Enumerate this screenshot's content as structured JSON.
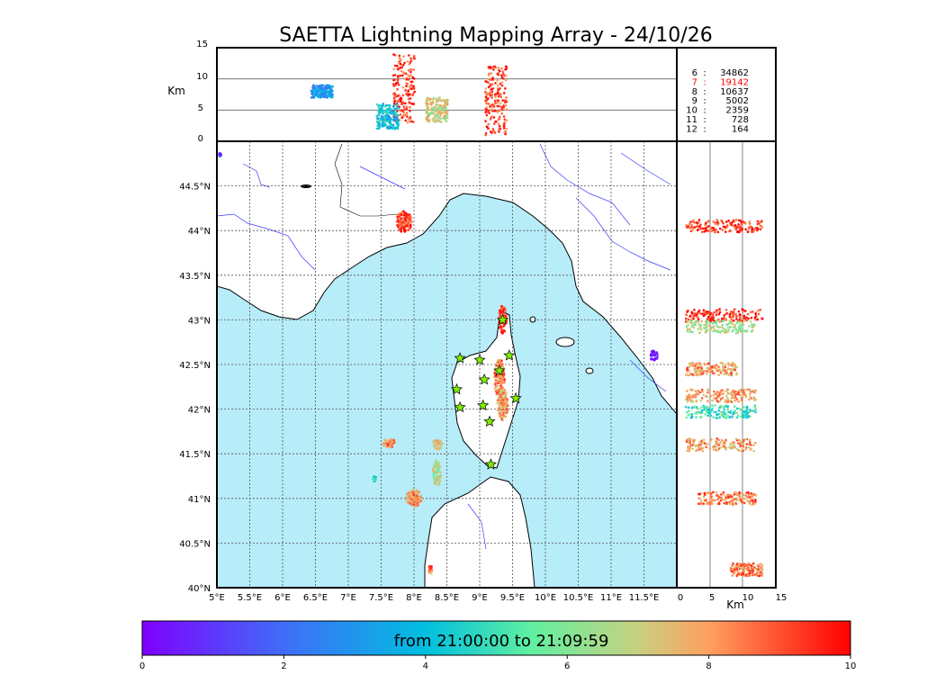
{
  "title": "SAETTA Lightning Mapping Array - 24/10/26",
  "altitude_label": "Km",
  "depth_label": "Km",
  "altitude_ticks": [
    "0",
    "5",
    "10",
    "15"
  ],
  "lat_labels": [
    "40°N",
    "40.5°N",
    "41°N",
    "41.5°N",
    "42°N",
    "42.5°N",
    "43°N",
    "43.5°N",
    "44°N",
    "44.5°N"
  ],
  "lon_labels": [
    "5°E",
    "5.5°E",
    "6°E",
    "6.5°E",
    "7°E",
    "7.5°E",
    "8°E",
    "8.5°E",
    "9°E",
    "9.5°E",
    "10°E",
    "10.5°E",
    "11°E",
    "11.5°E"
  ],
  "side_ticks": [
    "0",
    "5",
    "10",
    "15"
  ],
  "station_counts": [
    {
      "stations": "6",
      "sep": ":",
      "count": "34862",
      "highlight": false
    },
    {
      "stations": "7",
      "sep": ":",
      "count": "19142",
      "highlight": true
    },
    {
      "stations": "8",
      "sep": ":",
      "count": "10637",
      "highlight": false
    },
    {
      "stations": "9",
      "sep": ":",
      "count": "5002",
      "highlight": false
    },
    {
      "stations": "10",
      "sep": ":",
      "count": "2359",
      "highlight": false
    },
    {
      "stations": "11",
      "sep": ":",
      "count": "728",
      "highlight": false
    },
    {
      "stations": "12",
      "sep": ":",
      "count": "164",
      "highlight": false
    }
  ],
  "colorbar": {
    "label": "from 21:00:00 to 21:09:59",
    "ticks": [
      "0",
      "2",
      "4",
      "6",
      "8",
      "10"
    ],
    "min": 0,
    "max": 10
  },
  "colors": {
    "sea": "#b7ecf9",
    "land": "#ffffff",
    "rivers": "#3a3aff",
    "station_marker": "#7ff000",
    "highlight_text": "#ff0000"
  },
  "map_extent": {
    "lon": [
      5,
      12
    ],
    "lat": [
      40,
      45
    ]
  },
  "stations": [
    {
      "lon": 9.35,
      "lat": 43.0
    },
    {
      "lon": 8.7,
      "lat": 42.57
    },
    {
      "lon": 9.0,
      "lat": 42.55
    },
    {
      "lon": 9.45,
      "lat": 42.6
    },
    {
      "lon": 9.3,
      "lat": 42.43
    },
    {
      "lon": 9.07,
      "lat": 42.33
    },
    {
      "lon": 8.65,
      "lat": 42.22
    },
    {
      "lon": 9.55,
      "lat": 42.12
    },
    {
      "lon": 8.7,
      "lat": 42.02
    },
    {
      "lon": 9.05,
      "lat": 42.04
    },
    {
      "lon": 9.15,
      "lat": 41.86
    },
    {
      "lon": 9.17,
      "lat": 41.38
    }
  ],
  "lightning_cells": [
    {
      "lon": 7.85,
      "lat": 44.1,
      "rx": 0.12,
      "ry": 0.12,
      "time": 9.2
    },
    {
      "lon": 9.35,
      "lat": 43.0,
      "rx": 0.06,
      "ry": 0.16,
      "time": 9.5
    },
    {
      "lon": 9.3,
      "lat": 42.35,
      "rx": 0.08,
      "ry": 0.22,
      "time": 8.4
    },
    {
      "lon": 9.35,
      "lat": 42.05,
      "rx": 0.08,
      "ry": 0.18,
      "time": 8.0
    },
    {
      "lon": 7.62,
      "lat": 41.62,
      "rx": 0.1,
      "ry": 0.05,
      "time": 8.2
    },
    {
      "lon": 8.35,
      "lat": 41.6,
      "rx": 0.08,
      "ry": 0.06,
      "time": 7.0
    },
    {
      "lon": 8.35,
      "lat": 41.28,
      "rx": 0.06,
      "ry": 0.15,
      "time": 6.8
    },
    {
      "lon": 8.0,
      "lat": 41.0,
      "rx": 0.12,
      "ry": 0.1,
      "time": 8.1
    },
    {
      "lon": 7.4,
      "lat": 41.22,
      "rx": 0.03,
      "ry": 0.03,
      "time": 5.0
    },
    {
      "lon": 8.25,
      "lat": 40.2,
      "rx": 0.03,
      "ry": 0.05,
      "time": 8.5
    },
    {
      "lon": 11.65,
      "lat": 42.6,
      "rx": 0.06,
      "ry": 0.06,
      "time": 0.3
    },
    {
      "lon": 5.05,
      "lat": 44.85,
      "rx": 0.02,
      "ry": 0.02,
      "time": 1.0
    }
  ],
  "altitude_cells": [
    {
      "lon": 7.85,
      "alt_min": 3,
      "alt_max": 14,
      "time": 9.2
    },
    {
      "lon": 8.35,
      "alt_min": 3,
      "alt_max": 7,
      "time": 7.0
    },
    {
      "lon": 7.6,
      "alt_min": 2,
      "alt_max": 6,
      "time": 4.0
    },
    {
      "lon": 9.25,
      "alt_min": 1,
      "alt_max": 12,
      "time": 9.0
    },
    {
      "lon": 6.6,
      "alt_min": 7,
      "alt_max": 9,
      "time": 3.0
    }
  ],
  "side_cells": [
    {
      "lat": 44.05,
      "alt_min": 1,
      "alt_max": 13,
      "time": 9.3
    },
    {
      "lat": 43.05,
      "alt_min": 1,
      "alt_max": 13,
      "time": 9.5
    },
    {
      "lat": 42.92,
      "alt_min": 1,
      "alt_max": 12,
      "time": 6.5
    },
    {
      "lat": 42.45,
      "alt_min": 1,
      "alt_max": 9,
      "time": 8.2
    },
    {
      "lat": 42.15,
      "alt_min": 1,
      "alt_max": 12,
      "time": 8.0
    },
    {
      "lat": 41.97,
      "alt_min": 1,
      "alt_max": 12,
      "time": 5.0
    },
    {
      "lat": 41.6,
      "alt_min": 1,
      "alt_max": 12,
      "time": 8.0
    },
    {
      "lat": 41.0,
      "alt_min": 3,
      "alt_max": 12,
      "time": 8.4
    },
    {
      "lat": 40.2,
      "alt_min": 8,
      "alt_max": 13,
      "time": 8.5
    }
  ]
}
